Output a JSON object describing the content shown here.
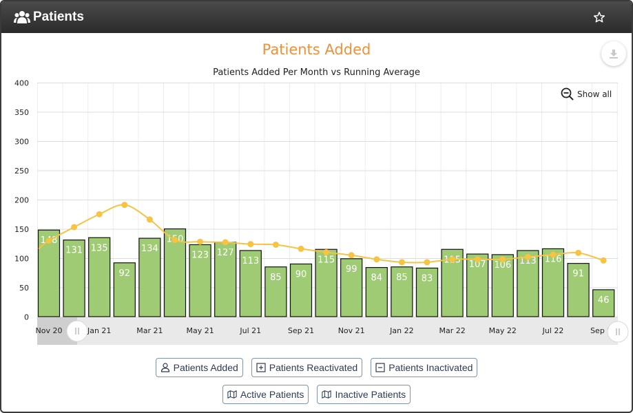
{
  "header": {
    "title": "Patients",
    "icon": "users-icon",
    "favorite_icon": "star-icon"
  },
  "chart_title": "Patients Added",
  "toolbar": {
    "show_all_label": "Show all"
  },
  "chart_data": {
    "type": "bar",
    "subtitle": "Patients Added Per Month vs Running Average",
    "ylim": [
      0,
      400
    ],
    "y_ticks": [
      0,
      50,
      100,
      150,
      200,
      250,
      300,
      350,
      400
    ],
    "x_tick_labels": [
      "Nov 20",
      "Jan 21",
      "Mar 21",
      "May 21",
      "Jul 21",
      "Sep 21",
      "Nov 21",
      "Jan 22",
      "Mar 22",
      "May 22",
      "Jul 22",
      "Sep 22"
    ],
    "grid": true,
    "legend": "none",
    "bars": {
      "color": "#9ecb74",
      "values": [
        148,
        131,
        135,
        92,
        134,
        150,
        123,
        127,
        113,
        85,
        90,
        115,
        99,
        84,
        85,
        83,
        115,
        107,
        106,
        113,
        116,
        91,
        46
      ]
    },
    "line": {
      "color": "#f6c343",
      "values": [
        130,
        153,
        175,
        191,
        166,
        131,
        128,
        127,
        124,
        123,
        116,
        110,
        105,
        98,
        93,
        93,
        98,
        98,
        98,
        102,
        106,
        109,
        96
      ]
    }
  },
  "buttons_row1": [
    {
      "label": "Patients Added",
      "icon": "user-icon"
    },
    {
      "label": "Patients Reactivated",
      "icon": "plus-square-icon"
    },
    {
      "label": "Patients Inactivated",
      "icon": "minus-square-icon"
    }
  ],
  "buttons_row2": [
    {
      "label": "Active Patients",
      "icon": "map-icon"
    },
    {
      "label": "Inactive Patients",
      "icon": "map-icon"
    }
  ]
}
